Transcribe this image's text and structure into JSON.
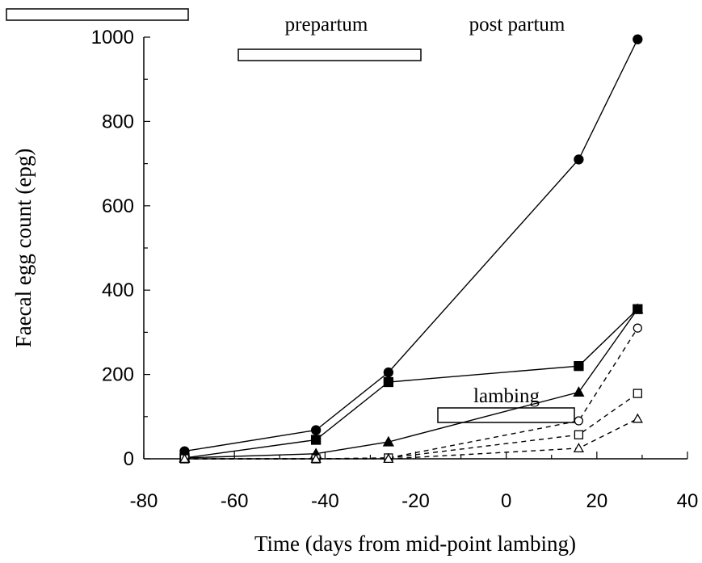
{
  "chart_data": {
    "type": "line",
    "xlabel": "Time (days from mid-point lambing)",
    "ylabel": "Faecal egg count (epg)",
    "xlim": [
      -80,
      40
    ],
    "ylim": [
      0,
      1000
    ],
    "xticks": [
      -80,
      -60,
      -40,
      -20,
      0,
      20,
      40
    ],
    "yticks": [
      0,
      200,
      400,
      600,
      800,
      1000
    ],
    "grid": false,
    "annotations": {
      "prepartum": "prepartum",
      "postpartum": "post partum",
      "lambing": "lambing"
    },
    "series": [
      {
        "marker": "circle",
        "filled": true,
        "dashed": false,
        "x": [
          -71,
          -42,
          -26,
          16,
          29
        ],
        "y": [
          18,
          68,
          205,
          710,
          995
        ]
      },
      {
        "marker": "square",
        "filled": true,
        "dashed": false,
        "x": [
          -71,
          -42,
          -26,
          16,
          29
        ],
        "y": [
          2,
          45,
          182,
          220,
          355
        ]
      },
      {
        "marker": "triangle",
        "filled": true,
        "dashed": false,
        "x": [
          -71,
          -42,
          -26,
          16,
          29
        ],
        "y": [
          2,
          12,
          40,
          158,
          355
        ]
      },
      {
        "marker": "circle",
        "filled": false,
        "dashed": true,
        "x": [
          -71,
          -42,
          -26,
          16,
          29
        ],
        "y": [
          0,
          0,
          2,
          90,
          310
        ]
      },
      {
        "marker": "square",
        "filled": false,
        "dashed": true,
        "x": [
          -71,
          -42,
          -26,
          16,
          29
        ],
        "y": [
          0,
          0,
          2,
          57,
          155
        ]
      },
      {
        "marker": "triangle",
        "filled": false,
        "dashed": true,
        "x": [
          -71,
          -42,
          -26,
          16,
          29
        ],
        "y": [
          0,
          0,
          0,
          25,
          95
        ]
      }
    ]
  }
}
